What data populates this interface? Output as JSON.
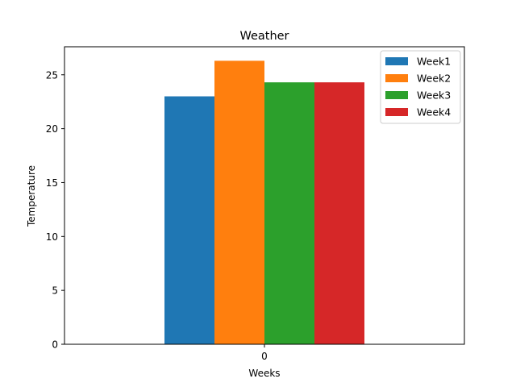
{
  "chart_data": {
    "type": "bar",
    "title": "Weather",
    "xlabel": "Weeks",
    "ylabel": "Temperature",
    "categories": [
      "0"
    ],
    "series": [
      {
        "name": "Week1",
        "values": [
          23.0
        ],
        "color": "#1f77b4"
      },
      {
        "name": "Week2",
        "values": [
          26.3
        ],
        "color": "#ff7f0e"
      },
      {
        "name": "Week3",
        "values": [
          24.3
        ],
        "color": "#2ca02c"
      },
      {
        "name": "Week4",
        "values": [
          24.3
        ],
        "color": "#d62728"
      }
    ],
    "ylim": [
      0,
      27.6
    ],
    "yticks": [
      0,
      5,
      10,
      15,
      20,
      25
    ],
    "grid": false,
    "legend_position": "top-right"
  }
}
